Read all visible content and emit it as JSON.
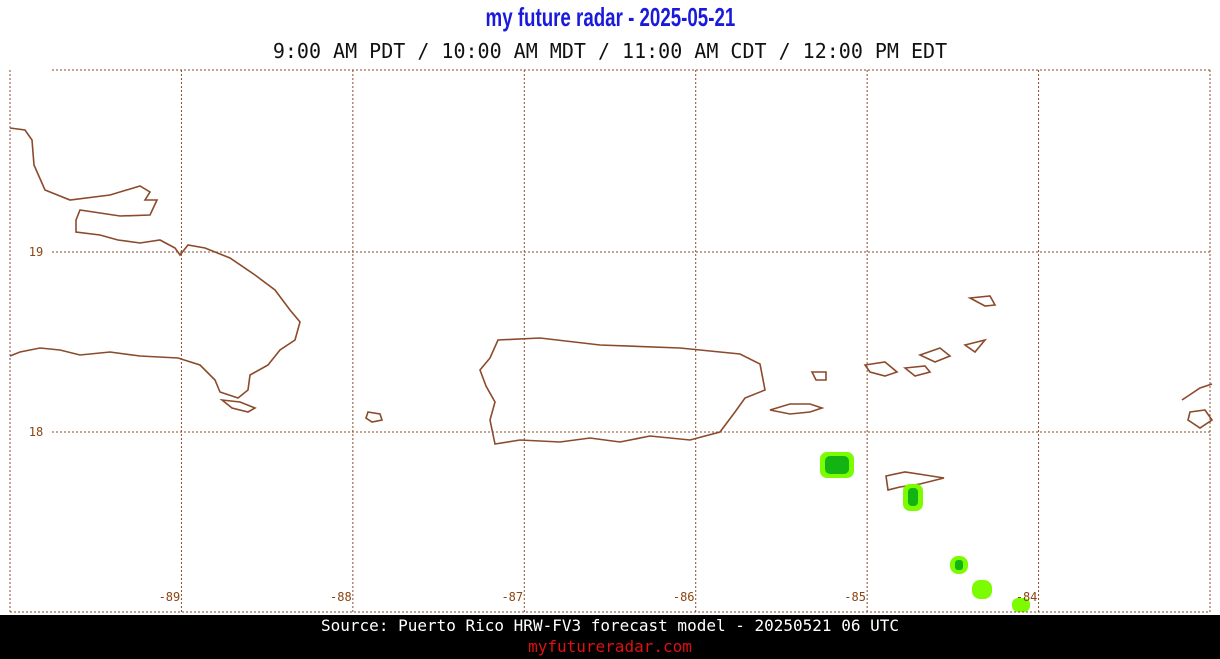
{
  "header": {
    "title": "my future radar - 2025-05-21",
    "subtitle": "9:00 AM PDT / 10:00 AM MDT / 11:00 AM CDT / 12:00 PM EDT"
  },
  "map": {
    "xlim": [
      -90,
      -83
    ],
    "ylim": [
      17,
      20
    ],
    "xticks": [
      -89,
      -88,
      -87,
      -86,
      -85,
      -84
    ],
    "yticks": [
      19,
      18
    ]
  },
  "footer": {
    "source": "Source: Puerto Rico HRW-FV3 forecast model - 20250521 06 UTC",
    "site": "myfutureradar.com"
  }
}
